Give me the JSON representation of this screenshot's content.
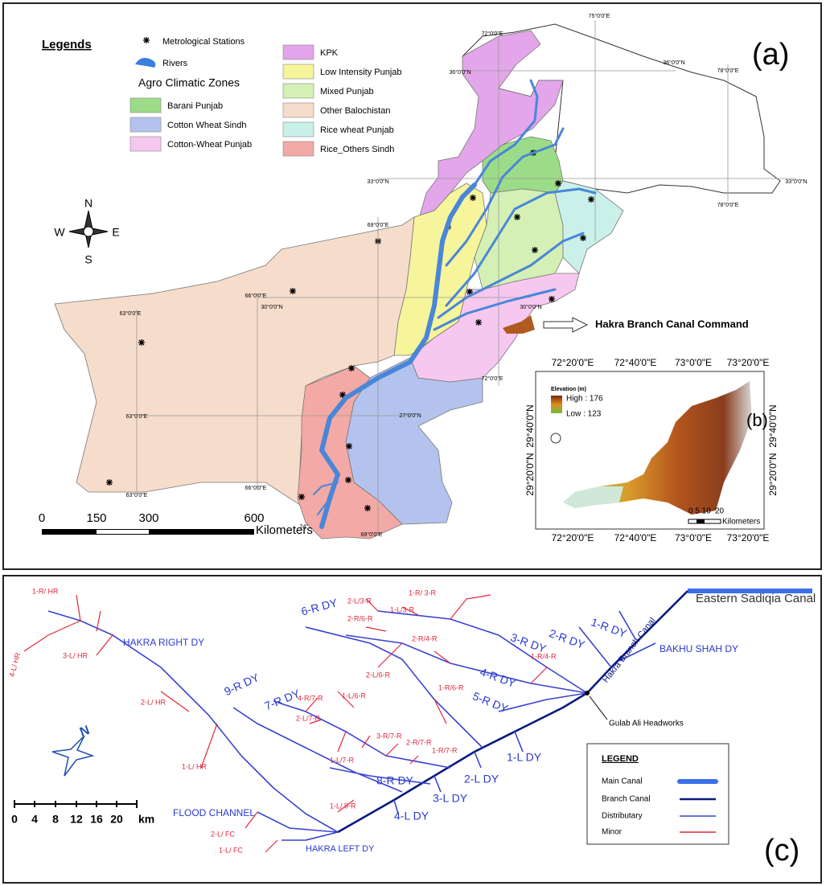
{
  "panel_a": {
    "tag": "(a)",
    "legend": {
      "title": "Legends",
      "stations": "Metrological Stations",
      "rivers": "Rivers",
      "zones_title": "Agro Climatic Zones",
      "zones": [
        {
          "name": "Barani Punjab",
          "color": "#9cdc88"
        },
        {
          "name": "Cotton Wheat Sindh",
          "color": "#b3c3ee"
        },
        {
          "name": "Cotton-Wheat Punjab",
          "color": "#f6c8f0"
        },
        {
          "name": "KPK",
          "color": "#e3a6ea"
        },
        {
          "name": "Low Intensity Punjab",
          "color": "#f6f59c"
        },
        {
          "name": "Mixed Punjab",
          "color": "#d5f0b4"
        },
        {
          "name": "Other Balochistan",
          "color": "#f6dccb"
        },
        {
          "name": "Rice wheat Punjab",
          "color": "#c9f1e9"
        },
        {
          "name": "Rice_Others Sindh",
          "color": "#f3a9a5"
        }
      ]
    },
    "compass": [
      "N",
      "W",
      "E",
      "S"
    ],
    "callout": "Hakra Branch Canal Command",
    "scale": [
      "0",
      "150",
      "300",
      "600",
      "Kilometers"
    ],
    "grid_labels": [
      "75°0'0\"E",
      "72°0'0\"E",
      "36°0'0\"N",
      "78°0'0\"E",
      "36°0'0\"N",
      "33°0'0\"N",
      "33°0'0\"N",
      "78°0'0\"E",
      "69°0'0\"E",
      "66°0'0\"E",
      "30°0'0\"N",
      "63°0'0\"E",
      "30°0'0\"N",
      "72°0'0\"E",
      "27°0'0\"N",
      "63°0'0\"E",
      "66°0'0\"E",
      "63°0'0\"E",
      "24°",
      "69°0'0\"E"
    ]
  },
  "panel_b": {
    "tag": "(b)",
    "legend_title": "Elevation (m)",
    "high": "High : 176",
    "low": "Low : 123",
    "lon_labels": [
      "72°20'0\"E",
      "72°40'0\"E",
      "73°0'0\"E",
      "73°20'0\"E"
    ],
    "lat_labels": [
      "29°40'0\"N",
      "29°20'0\"N"
    ],
    "scale": [
      "0 5 10",
      "20",
      "Kilometers"
    ]
  },
  "panel_c": {
    "tag": "(c)",
    "north": "N",
    "canals": [
      "Eastern Sadiqia Canal",
      "HAKRA RIGHT DY",
      "BAKHU SHAH DY",
      "Hakra Branch Canal",
      "Gulab Ali Headworks",
      "FLOOD CHANNEL",
      "HAKRA LEFT DY"
    ],
    "distributaries": [
      "1-R DY",
      "2-R DY",
      "3-R DY",
      "4-R DY",
      "5-R DY",
      "6-R DY",
      "7-R DY",
      "8-R DY",
      "9-R DY",
      "1-L DY",
      "2-L DY",
      "3-L DY",
      "4-L DY"
    ],
    "minors": [
      "1-R/ HR",
      "3-L/ HR",
      "4-L/ HR",
      "2-L/ HR",
      "1-L/ HR",
      "2-L/ FC",
      "1-L/ FC",
      "1-R/ 3-R",
      "2-L/3-R",
      "1-L/3-R",
      "2-R/6-R",
      "2-R/4-R",
      "1-R/4-R",
      "2-L/6-R",
      "1-L/6-R",
      "1-R/6-R",
      "4-R/7-R",
      "2-L/7-R",
      "3-R/7-R",
      "2-R/7-R",
      "1-R/7-R",
      "1-L/7-R",
      "1-L/ 9-R"
    ],
    "legend": {
      "title": "LEGEND",
      "items": [
        "Main Canal",
        "Branch Canal",
        "Distributary",
        "Minor"
      ]
    },
    "scale": [
      "0",
      "4",
      "8",
      "12",
      "16",
      "20",
      "km"
    ]
  }
}
